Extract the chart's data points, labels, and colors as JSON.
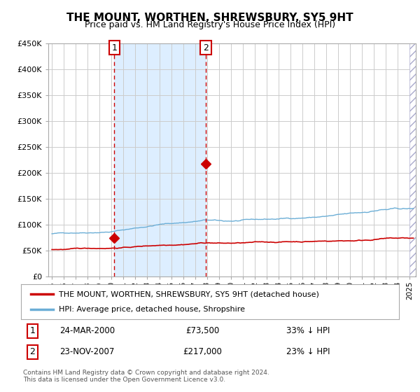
{
  "title": "THE MOUNT, WORTHEN, SHREWSBURY, SY5 9HT",
  "subtitle": "Price paid vs. HM Land Registry's House Price Index (HPI)",
  "legend_line1": "THE MOUNT, WORTHEN, SHREWSBURY, SY5 9HT (detached house)",
  "legend_line2": "HPI: Average price, detached house, Shropshire",
  "table_row1": [
    "1",
    "24-MAR-2000",
    "£73,500",
    "33% ↓ HPI"
  ],
  "table_row2": [
    "2",
    "23-NOV-2007",
    "£217,000",
    "23% ↓ HPI"
  ],
  "footer": "Contains HM Land Registry data © Crown copyright and database right 2024.\nThis data is licensed under the Open Government Licence v3.0.",
  "hpi_color": "#6baed6",
  "price_color": "#cc0000",
  "marker_color": "#cc0000",
  "vline_color": "#cc0000",
  "shade_color": "#ddeeff",
  "ylim": [
    0,
    450000
  ],
  "yticks": [
    0,
    50000,
    100000,
    150000,
    200000,
    250000,
    300000,
    350000,
    400000,
    450000
  ],
  "xlim_start": 1994.7,
  "xlim_end": 2025.5,
  "event1_x": 2000.23,
  "event1_y": 73500,
  "event2_x": 2007.9,
  "event2_y": 217000,
  "hatch_region_start": 2025.0
}
